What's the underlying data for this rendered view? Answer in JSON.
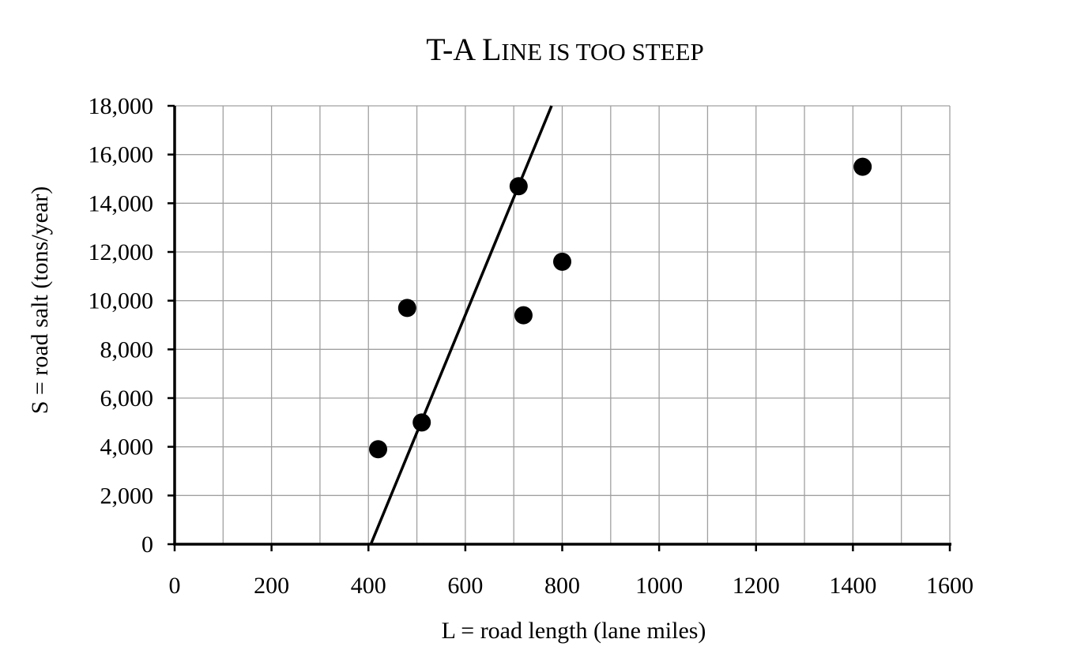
{
  "chart_data": {
    "type": "scatter",
    "title": "T-A Line is too steep",
    "title_display": {
      "c1": "T-A L",
      "c2": "ine is too steep"
    },
    "xlabel": "L = road length (lane miles)",
    "ylabel": "S = road salt (tons/year)",
    "xlim": [
      0,
      1600
    ],
    "ylim": [
      0,
      18000
    ],
    "x_major_ticks": [
      0,
      200,
      400,
      600,
      800,
      1000,
      1200,
      1400,
      1600
    ],
    "x_minor_step": 100,
    "y_major_step": 2000,
    "x_tick_labels": [
      "0",
      "200",
      "400",
      "600",
      "800",
      "1000",
      "1200",
      "1400",
      "1600"
    ],
    "y_ticks": [
      0,
      2000,
      4000,
      6000,
      8000,
      10000,
      12000,
      14000,
      16000,
      18000
    ],
    "y_tick_labels": [
      "0",
      "2,000",
      "4,000",
      "6,000",
      "8,000",
      "10,000",
      "12,000",
      "14,000",
      "16,000",
      "18,000"
    ],
    "grid": true,
    "points": [
      {
        "x": 420,
        "y": 3900
      },
      {
        "x": 480,
        "y": 9700
      },
      {
        "x": 510,
        "y": 5000
      },
      {
        "x": 710,
        "y": 14700
      },
      {
        "x": 720,
        "y": 9400
      },
      {
        "x": 800,
        "y": 11600
      },
      {
        "x": 1420,
        "y": 15500
      }
    ],
    "line": {
      "x1": 405,
      "y1": 0,
      "x2": 778,
      "y2": 18000
    },
    "colors": {
      "marker": "#000000",
      "line": "#000000",
      "grid": "#a0a0a0",
      "axis": "#000000"
    }
  }
}
